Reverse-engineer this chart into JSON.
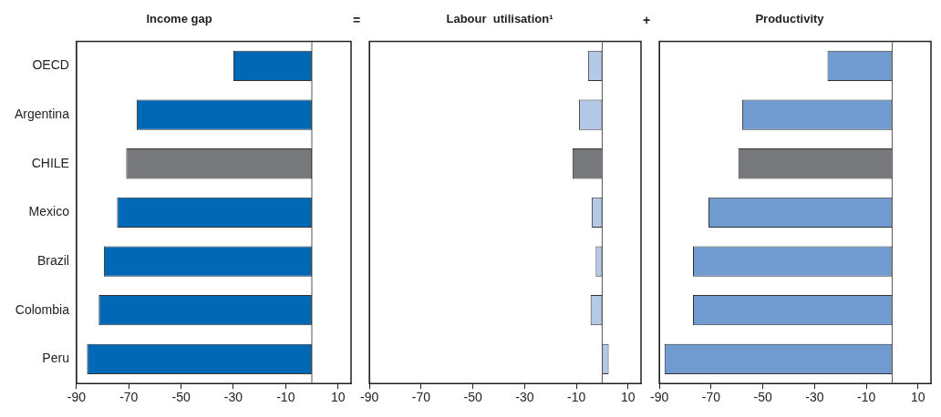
{
  "chart_data": [
    {
      "type": "bar",
      "orientation": "horizontal",
      "title": "Income gap",
      "categories": [
        "OECD",
        "Argentina",
        "CHILE",
        "Mexico",
        "Brazil",
        "Colombia",
        "Peru"
      ],
      "values": [
        -30,
        -67,
        -71,
        -74.5,
        -79.5,
        -81.5,
        -86
      ],
      "colors": [
        "#0068b4",
        "#0068b4",
        "#77787b",
        "#0068b4",
        "#0068b4",
        "#0068b4",
        "#0068b4"
      ],
      "xlim": [
        -90,
        15
      ],
      "xticks": [
        -90,
        -70,
        -50,
        -30,
        -10,
        10
      ],
      "grid": false,
      "legend": false
    },
    {
      "type": "bar",
      "orientation": "horizontal",
      "title": "Labour  utilisation¹",
      "annotations": [
        "="
      ],
      "categories": [
        null,
        null,
        null,
        null,
        null,
        null,
        null
      ],
      "values": [
        -5.5,
        -9,
        -11.5,
        -4,
        -2.5,
        -4.5,
        2.5
      ],
      "colors": [
        "#b4c8e8",
        "#b4c8e8",
        "#77787b",
        "#b4c8e8",
        "#b4c8e8",
        "#b4c8e8",
        "#b4c8e8"
      ],
      "xlim": [
        -90,
        15
      ],
      "xticks": [
        -90,
        -70,
        -50,
        -30,
        -10,
        10
      ],
      "grid": false,
      "legend": false,
      "tick_labels": "x"
    },
    {
      "type": "bar",
      "orientation": "horizontal",
      "title": "Productivity",
      "annotations": [
        "+"
      ],
      "categories": [
        null,
        null,
        null,
        null,
        null,
        null,
        null
      ],
      "values": [
        -25,
        -58,
        -59.5,
        -71,
        -77,
        -77,
        -88
      ],
      "colors": [
        "#6f9bd1",
        "#6f9bd1",
        "#77787b",
        "#6f9bd1",
        "#6f9bd1",
        "#6f9bd1",
        "#6f9bd1"
      ],
      "xlim": [
        -90,
        15
      ],
      "xticks": [
        -90,
        -70,
        -50,
        -30,
        -10,
        10
      ],
      "grid": false,
      "legend": false,
      "tick_labels": "x"
    }
  ]
}
